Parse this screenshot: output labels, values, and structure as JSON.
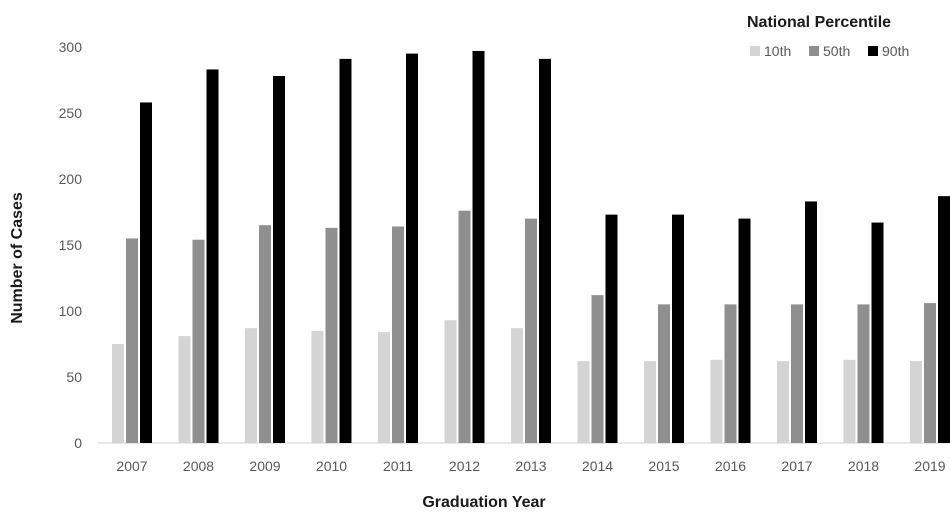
{
  "chart_data": {
    "type": "bar",
    "xlabel": "Graduation Year",
    "ylabel": "Number of Cases",
    "ylim": [
      0,
      300
    ],
    "yticks": [
      0,
      50,
      100,
      150,
      200,
      250,
      300
    ],
    "grid": false,
    "legend": {
      "title": "National Percentile",
      "placement": "top-right"
    },
    "categories": [
      "2007",
      "2008",
      "2009",
      "2010",
      "2011",
      "2012",
      "2013",
      "2014",
      "2015",
      "2016",
      "2017",
      "2018",
      "2019"
    ],
    "series": [
      {
        "name": "10th",
        "color": "#d4d4d4",
        "values": [
          75,
          81,
          87,
          85,
          84,
          93,
          87,
          62,
          62,
          63,
          62,
          63,
          62
        ]
      },
      {
        "name": "50th",
        "color": "#8f8f8f",
        "values": [
          155,
          154,
          165,
          163,
          164,
          176,
          170,
          112,
          105,
          105,
          105,
          105,
          106
        ]
      },
      {
        "name": "90th",
        "color": "#000000",
        "values": [
          258,
          283,
          278,
          291,
          295,
          297,
          291,
          173,
          173,
          170,
          183,
          167,
          187
        ]
      }
    ]
  }
}
